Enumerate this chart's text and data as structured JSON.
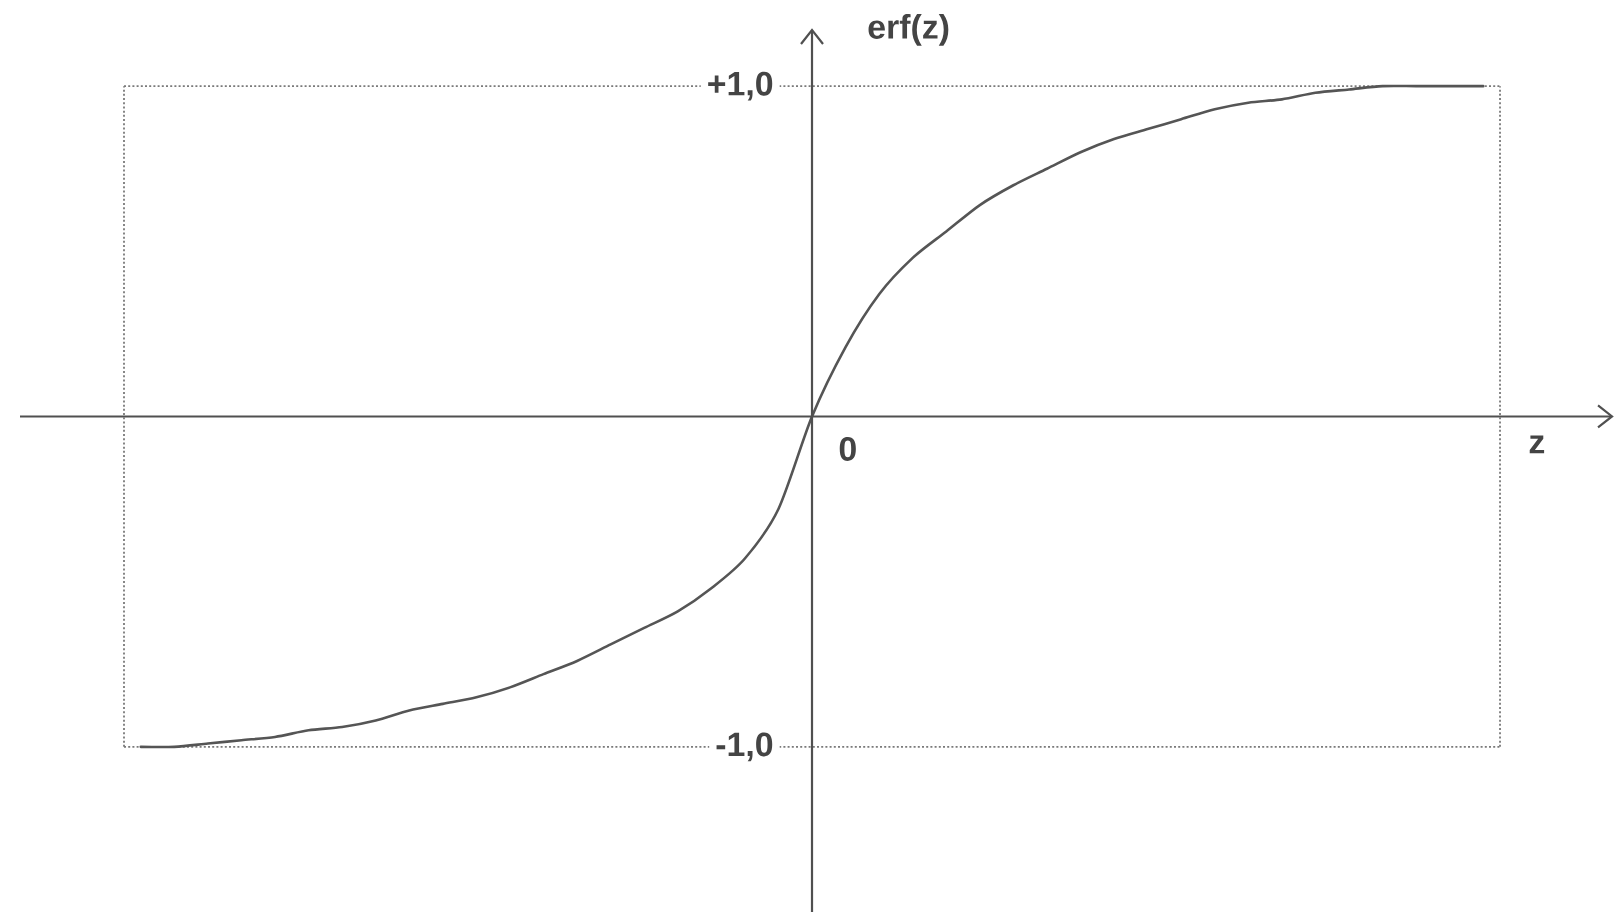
{
  "chart_data": {
    "type": "line",
    "xlabel": "z",
    "ylabel": "erf(z)",
    "categories": [
      null,
      null,
      null,
      null,
      null,
      null,
      null,
      null,
      null,
      null,
      null,
      null,
      null,
      null,
      null,
      null,
      null,
      null,
      null,
      null,
      null,
      null,
      null,
      null,
      null,
      null,
      null,
      null,
      null,
      null,
      null,
      null,
      null,
      null,
      null,
      null,
      null,
      null,
      null,
      null,
      null
    ],
    "values": [
      -1.0,
      -1.0,
      -0.99,
      -0.98,
      -0.97,
      -0.95,
      -0.94,
      -0.92,
      -0.89,
      -0.87,
      -0.85,
      -0.82,
      -0.78,
      -0.74,
      -0.69,
      -0.64,
      -0.59,
      -0.52,
      -0.43,
      -0.28,
      0,
      0.21,
      0.37,
      0.48,
      0.56,
      0.64,
      0.7,
      0.75,
      0.8,
      0.84,
      0.87,
      0.9,
      0.93,
      0.95,
      0.96,
      0.98,
      0.99,
      1.0,
      1.0,
      1.0,
      1.0
    ],
    "color": "#555555",
    "line_style": "solid",
    "marker": "none",
    "ylim": [
      -1.5,
      1.17
    ],
    "yticks": [
      {
        "value": -1,
        "label": "-1,0"
      },
      {
        "value": 1,
        "label": "+1,0"
      }
    ],
    "ref_lines": [
      {
        "axis": "y",
        "value": 1,
        "line_style": "dotted",
        "color": "#7a7a7a"
      },
      {
        "axis": "y",
        "value": -1,
        "line_style": "dotted",
        "color": "#7a7a7a"
      }
    ],
    "annotations": [
      "0"
    ]
  }
}
